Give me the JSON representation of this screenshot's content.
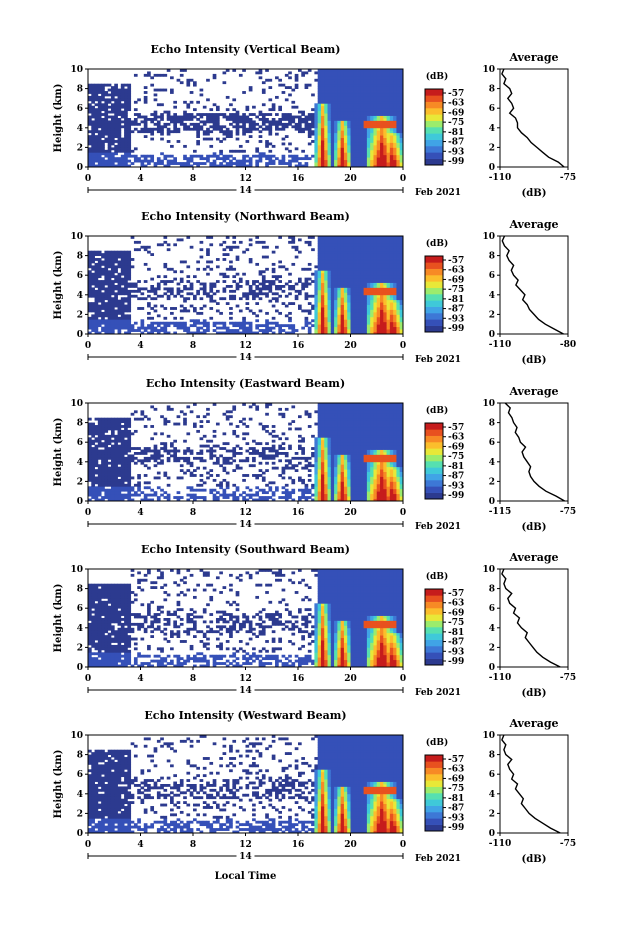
{
  "figure": {
    "xlabel": "Local Time",
    "date_label": "Feb 2021",
    "day_marker": "14",
    "colorbar_unit": "(dB)",
    "colormap_hex": [
      "#2c3a8f",
      "#3550b8",
      "#3d78d6",
      "#40a4e6",
      "#3fc9d9",
      "#56e0b0",
      "#9cec6c",
      "#e8e838",
      "#fbbe2c",
      "#f78a25",
      "#e8511f",
      "#c61c1c"
    ]
  },
  "chart_data": [
    {
      "type": "heatmap",
      "title": "Echo Intensity (Vertical Beam)",
      "ylabel": "Height (km)",
      "x_ticks": [
        "0",
        "4",
        "8",
        "12",
        "16",
        "20",
        "0"
      ],
      "y_ticks": [
        "0",
        "2",
        "4",
        "6",
        "8",
        "10"
      ],
      "xlim": [
        0,
        24
      ],
      "ylim": [
        0,
        10
      ],
      "colorbar_ticks": [
        "-57",
        "-63",
        "-69",
        "-75",
        "-81",
        "-87",
        "-93",
        "-99"
      ],
      "profile": {
        "title": "Average",
        "xlabel": "(dB)",
        "x_ticks": [
          "-110",
          "-75"
        ],
        "y_ticks": [
          "0",
          "2",
          "4",
          "6",
          "8",
          "10"
        ],
        "xlim": [
          -110,
          -75
        ],
        "ylim": [
          0,
          10
        ],
        "x": [
          -77,
          -80,
          -85,
          -88,
          -91,
          -94,
          -96,
          -99,
          -101,
          -101,
          -102,
          -105,
          -103,
          -104,
          -106,
          -104,
          -105,
          -108,
          -107,
          -109,
          -108
        ],
        "y": [
          0,
          0.5,
          1,
          1.5,
          2,
          2.5,
          3,
          3.5,
          4,
          4.5,
          5,
          5.5,
          6,
          6.5,
          7,
          7.5,
          8,
          8.5,
          9,
          9.5,
          10
        ]
      }
    },
    {
      "type": "heatmap",
      "title": "Echo Intensity (Northward Beam)",
      "ylabel": "Height (km)",
      "x_ticks": [
        "0",
        "4",
        "8",
        "12",
        "16",
        "20",
        "0"
      ],
      "y_ticks": [
        "0",
        "2",
        "4",
        "6",
        "8",
        "10"
      ],
      "xlim": [
        0,
        24
      ],
      "ylim": [
        0,
        10
      ],
      "colorbar_ticks": [
        "-57",
        "-63",
        "-69",
        "-75",
        "-81",
        "-87",
        "-93",
        "-99"
      ],
      "profile": {
        "title": "Average",
        "xlabel": "(dB)",
        "x_ticks": [
          "-110",
          "-80"
        ],
        "y_ticks": [
          "0",
          "2",
          "4",
          "6",
          "8",
          "10"
        ],
        "xlim": [
          -110,
          -80
        ],
        "ylim": [
          0,
          10
        ],
        "x": [
          -82,
          -86,
          -90,
          -93,
          -95,
          -97,
          -98,
          -100,
          -99,
          -101,
          -103,
          -102,
          -104,
          -105,
          -104,
          -106,
          -107,
          -106,
          -108,
          -109,
          -108
        ],
        "y": [
          0,
          0.5,
          1,
          1.5,
          2,
          2.5,
          3,
          3.5,
          4,
          4.5,
          5,
          5.5,
          6,
          6.5,
          7,
          7.5,
          8,
          8.5,
          9,
          9.5,
          10
        ]
      }
    },
    {
      "type": "heatmap",
      "title": "Echo Intensity (Eastward Beam)",
      "ylabel": "Height (km)",
      "x_ticks": [
        "0",
        "4",
        "8",
        "12",
        "16",
        "20",
        "0"
      ],
      "y_ticks": [
        "0",
        "2",
        "4",
        "6",
        "8",
        "10"
      ],
      "xlim": [
        0,
        24
      ],
      "ylim": [
        0,
        10
      ],
      "colorbar_ticks": [
        "-57",
        "-63",
        "-69",
        "-75",
        "-81",
        "-87",
        "-93",
        "-99"
      ],
      "profile": {
        "title": "Average",
        "xlabel": "(dB)",
        "x_ticks": [
          "-115",
          "-75"
        ],
        "y_ticks": [
          "0",
          "2",
          "4",
          "6",
          "8",
          "10"
        ],
        "xlim": [
          -115,
          -75
        ],
        "ylim": [
          0,
          10
        ],
        "x": [
          -77,
          -82,
          -88,
          -92,
          -95,
          -97,
          -98,
          -97,
          -99,
          -101,
          -102,
          -100,
          -103,
          -104,
          -106,
          -105,
          -107,
          -108,
          -110,
          -109,
          -112
        ],
        "y": [
          0,
          0.5,
          1,
          1.5,
          2,
          2.5,
          3,
          3.5,
          4,
          4.5,
          5,
          5.5,
          6,
          6.5,
          7,
          7.5,
          8,
          8.5,
          9,
          9.5,
          10
        ]
      }
    },
    {
      "type": "heatmap",
      "title": "Echo Intensity (Southward Beam)",
      "ylabel": "Height (km)",
      "x_ticks": [
        "0",
        "4",
        "8",
        "12",
        "16",
        "20",
        "0"
      ],
      "y_ticks": [
        "0",
        "2",
        "4",
        "6",
        "8",
        "10"
      ],
      "xlim": [
        0,
        24
      ],
      "ylim": [
        0,
        10
      ],
      "colorbar_ticks": [
        "-57",
        "-63",
        "-69",
        "-75",
        "-81",
        "-87",
        "-93",
        "-99"
      ],
      "profile": {
        "title": "Average",
        "xlabel": "(dB)",
        "x_ticks": [
          "-110",
          "-75"
        ],
        "y_ticks": [
          "0",
          "2",
          "4",
          "6",
          "8",
          "10"
        ],
        "xlim": [
          -110,
          -75
        ],
        "ylim": [
          0,
          10
        ],
        "x": [
          -79,
          -84,
          -88,
          -91,
          -93,
          -95,
          -97,
          -96,
          -99,
          -101,
          -100,
          -103,
          -102,
          -105,
          -106,
          -104,
          -107,
          -108,
          -107,
          -109,
          -108
        ],
        "y": [
          0,
          0.5,
          1,
          1.5,
          2,
          2.5,
          3,
          3.5,
          4,
          4.5,
          5,
          5.5,
          6,
          6.5,
          7,
          7.5,
          8,
          8.5,
          9,
          9.5,
          10
        ]
      }
    },
    {
      "type": "heatmap",
      "title": "Echo Intensity (Westward Beam)",
      "ylabel": "Height (km)",
      "x_ticks": [
        "0",
        "4",
        "8",
        "12",
        "16",
        "20",
        "0"
      ],
      "y_ticks": [
        "0",
        "2",
        "4",
        "6",
        "8",
        "10"
      ],
      "xlim": [
        0,
        24
      ],
      "ylim": [
        0,
        10
      ],
      "colorbar_ticks": [
        "-57",
        "-63",
        "-69",
        "-75",
        "-81",
        "-87",
        "-93",
        "-99"
      ],
      "profile": {
        "title": "Average",
        "xlabel": "(dB)",
        "x_ticks": [
          "-110",
          "-75"
        ],
        "y_ticks": [
          "0",
          "2",
          "4",
          "6",
          "8",
          "10"
        ],
        "xlim": [
          -110,
          -75
        ],
        "ylim": [
          0,
          10
        ],
        "x": [
          -79,
          -84,
          -88,
          -92,
          -95,
          -97,
          -99,
          -98,
          -100,
          -102,
          -101,
          -104,
          -103,
          -105,
          -106,
          -104,
          -107,
          -108,
          -107,
          -109,
          -108
        ],
        "y": [
          0,
          0.5,
          1,
          1.5,
          2,
          2.5,
          3,
          3.5,
          4,
          4.5,
          5,
          5.5,
          6,
          6.5,
          7,
          7.5,
          8,
          8.5,
          9,
          9.5,
          10
        ]
      }
    }
  ]
}
